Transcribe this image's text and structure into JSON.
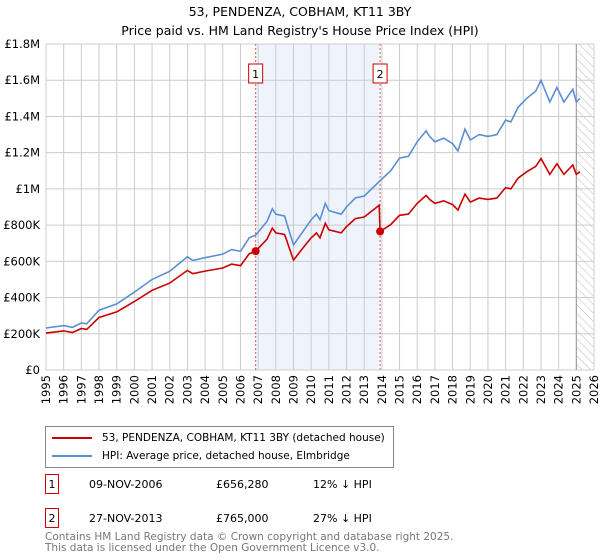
{
  "chart_data": {
    "type": "line",
    "title": "53, PENDENZA, COBHAM, KT11 3BY",
    "subtitle": "Price paid vs. HM Land Registry's House Price Index (HPI)",
    "xlim": [
      1995,
      2026
    ],
    "ylim": [
      0,
      1800000
    ],
    "x_ticks": [
      "1995",
      "1996",
      "1997",
      "1998",
      "1999",
      "2000",
      "2001",
      "2002",
      "2003",
      "2004",
      "2005",
      "2006",
      "2007",
      "2008",
      "2009",
      "2010",
      "2011",
      "2012",
      "2013",
      "2014",
      "2015",
      "2016",
      "2017",
      "2018",
      "2019",
      "2020",
      "2021",
      "2022",
      "2023",
      "2024",
      "2025",
      "2026"
    ],
    "y_ticks": [
      {
        "v": 0,
        "label": "£0"
      },
      {
        "v": 200000,
        "label": "£200K"
      },
      {
        "v": 400000,
        "label": "£400K"
      },
      {
        "v": 600000,
        "label": "£600K"
      },
      {
        "v": 800000,
        "label": "£800K"
      },
      {
        "v": 1000000,
        "label": "£1M"
      },
      {
        "v": 1200000,
        "label": "£1.2M"
      },
      {
        "v": 1400000,
        "label": "£1.4M"
      },
      {
        "v": 1600000,
        "label": "£1.6M"
      },
      {
        "v": 1800000,
        "label": "£1.8M"
      }
    ],
    "grid": true,
    "shaded_period": [
      2006.86,
      2013.9
    ],
    "forecast_hatch_from": 2025.0,
    "x": [
      1995,
      1996,
      1996.5,
      1997,
      1997.3,
      1998,
      1999,
      2000,
      2001,
      2002,
      2003,
      2003.3,
      2004,
      2005,
      2005.5,
      2006,
      2006.5,
      2006.86,
      2007.5,
      2007.8,
      2008,
      2008.5,
      2009,
      2009.5,
      2010,
      2010.3,
      2010.5,
      2010.8,
      2011,
      2011.7,
      2012,
      2012.5,
      2013,
      2013.85,
      2013.9,
      2014.5,
      2015,
      2015.5,
      2016,
      2016.5,
      2016.7,
      2017,
      2017.5,
      2018,
      2018.3,
      2018.7,
      2019,
      2019.5,
      2020,
      2020.5,
      2021,
      2021.3,
      2021.7,
      2022.2,
      2022.7,
      2023,
      2023.5,
      2023.9,
      2024.3,
      2024.8,
      2025,
      2025.2
    ],
    "series": [
      {
        "name": "53, PENDENZA, COBHAM, KT11 3BY (detached house)",
        "color": "#cc0000",
        "values": [
          204,
          216,
          207,
          229,
          224,
          290,
          321,
          378,
          440,
          480,
          550,
          532,
          546,
          563,
          585,
          576,
          642,
          656,
          722,
          783,
          757,
          748,
          607,
          669,
          730,
          757,
          730,
          810,
          774,
          757,
          792,
          836,
          845,
          910,
          765,
          803,
          854,
          861,
          920,
          964,
          942,
          920,
          934,
          913,
          883,
          971,
          927,
          949,
          942,
          949,
          1007,
          1000,
          1059,
          1095,
          1124,
          1168,
          1080,
          1139,
          1080,
          1132,
          1080,
          1095
        ]
      },
      {
        "name": "HPI: Average price, detached house, Elmbridge",
        "color": "#5b8fd4",
        "values": [
          232,
          245,
          235,
          260,
          255,
          330,
          365,
          430,
          500,
          545,
          625,
          605,
          620,
          640,
          665,
          655,
          730,
          745,
          820,
          890,
          860,
          850,
          690,
          760,
          830,
          860,
          830,
          920,
          880,
          860,
          900,
          950,
          960,
          1040,
          1045,
          1100,
          1170,
          1180,
          1260,
          1320,
          1290,
          1260,
          1280,
          1250,
          1210,
          1330,
          1270,
          1300,
          1290,
          1300,
          1380,
          1370,
          1450,
          1500,
          1540,
          1600,
          1480,
          1560,
          1480,
          1550,
          1480,
          1500
        ]
      }
    ],
    "value_unit": "thousands GBP",
    "markers": [
      {
        "label": "1",
        "x": 2006.86,
        "value": 656280
      },
      {
        "label": "2",
        "x": 2013.9,
        "value": 765000
      }
    ]
  },
  "legend": {
    "red": "53, PENDENZA, COBHAM, KT11 3BY (detached house)",
    "blue": "HPI: Average price, detached house, Elmbridge"
  },
  "sales": [
    {
      "num": "1",
      "date": "09-NOV-2006",
      "price": "£656,280",
      "hpi": "12% ↓ HPI"
    },
    {
      "num": "2",
      "date": "27-NOV-2013",
      "price": "£765,000",
      "hpi": "27% ↓ HPI"
    }
  ],
  "footer": {
    "line1": "Contains HM Land Registry data © Crown copyright and database right 2025.",
    "line2": "This data is licensed under the Open Government Licence v3.0."
  }
}
